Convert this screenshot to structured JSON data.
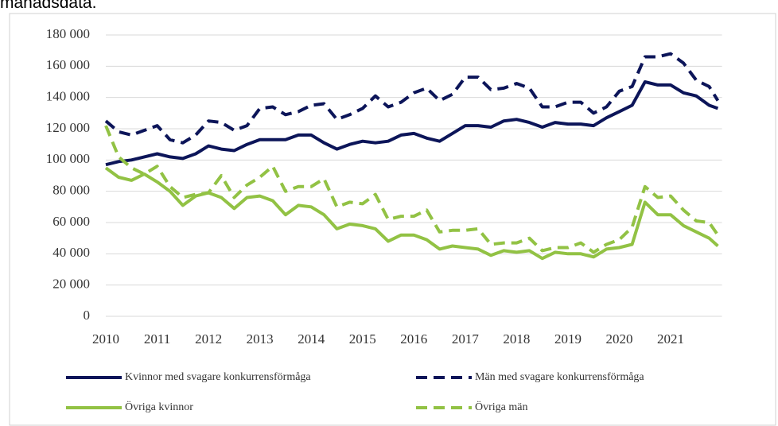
{
  "chart_data": {
    "type": "line",
    "caption": "månadsdata.",
    "x": [
      2010,
      2010.25,
      2010.5,
      2010.75,
      2011,
      2011.25,
      2011.5,
      2011.75,
      2012,
      2012.25,
      2012.5,
      2012.75,
      2013,
      2013.25,
      2013.5,
      2013.75,
      2014,
      2014.25,
      2014.5,
      2014.75,
      2015,
      2015.25,
      2015.5,
      2015.75,
      2016,
      2016.25,
      2016.5,
      2016.75,
      2017,
      2017.25,
      2017.5,
      2017.75,
      2018,
      2018.25,
      2018.5,
      2018.75,
      2019,
      2019.25,
      2019.5,
      2019.75,
      2020,
      2020.25,
      2020.5,
      2020.75,
      2021,
      2021.25,
      2021.5,
      2021.75,
      2021.92
    ],
    "xlim": [
      2010,
      2022
    ],
    "xticks": [
      2010,
      2011,
      2012,
      2013,
      2014,
      2015,
      2016,
      2017,
      2018,
      2019,
      2020,
      2021
    ],
    "ylim": [
      0,
      180000
    ],
    "yticks": [
      0,
      {
        "value": 20000,
        "label": "20 000"
      },
      {
        "value": 40000,
        "label": "40 000"
      },
      {
        "value": 60000,
        "label": "60 000"
      },
      {
        "value": 80000,
        "label": "80 000"
      },
      {
        "value": 100000,
        "label": "100 000"
      },
      {
        "value": 120000,
        "label": "120 000"
      },
      {
        "value": 140000,
        "label": "140 000"
      },
      {
        "value": 160000,
        "label": "160 000"
      },
      {
        "value": 180000,
        "label": "180 000"
      }
    ],
    "grid": true,
    "series": [
      {
        "name": "Kvinnor med svagare konkurrensförmåga",
        "color": "#0c1559",
        "dash": false,
        "values": [
          97000,
          99000,
          100000,
          102000,
          104000,
          102000,
          101000,
          104000,
          109000,
          107000,
          106000,
          110000,
          113000,
          113000,
          113000,
          116000,
          116000,
          111000,
          107000,
          110000,
          112000,
          111000,
          112000,
          116000,
          117000,
          114000,
          112000,
          117000,
          122000,
          122000,
          121000,
          125000,
          126000,
          124000,
          121000,
          124000,
          123000,
          123000,
          122000,
          127000,
          131000,
          135000,
          150000,
          148000,
          148000,
          143000,
          141000,
          135000,
          133000
        ]
      },
      {
        "name": "Män med svagare konkurrensförmåga",
        "color": "#0c1559",
        "dash": true,
        "values": [
          125000,
          118000,
          116000,
          119000,
          122000,
          113000,
          111000,
          116000,
          125000,
          124000,
          119000,
          122000,
          133000,
          134000,
          129000,
          131000,
          135000,
          136000,
          126000,
          129000,
          133000,
          141000,
          134000,
          137000,
          143000,
          146000,
          138000,
          142000,
          153000,
          153000,
          145000,
          146000,
          149000,
          146000,
          134000,
          134000,
          137000,
          137000,
          130000,
          134000,
          144000,
          147000,
          166000,
          166000,
          168000,
          162000,
          151000,
          147000,
          138000
        ]
      },
      {
        "name": "Övriga kvinnor",
        "color": "#92c244",
        "dash": false,
        "values": [
          95000,
          89000,
          87000,
          91000,
          86000,
          80000,
          71000,
          77000,
          79000,
          76000,
          69000,
          76000,
          77000,
          74000,
          65000,
          71000,
          70000,
          65000,
          56000,
          59000,
          58000,
          56000,
          48000,
          52000,
          52000,
          49000,
          43000,
          45000,
          44000,
          43000,
          39000,
          42000,
          41000,
          42000,
          37000,
          41000,
          40000,
          40000,
          38000,
          43000,
          44000,
          46000,
          73000,
          65000,
          65000,
          58000,
          54000,
          50000,
          45000
        ]
      },
      {
        "name": "Övriga män",
        "color": "#92c244",
        "dash": true,
        "values": [
          122000,
          102000,
          95000,
          91000,
          96000,
          83000,
          76000,
          78000,
          79000,
          90000,
          76000,
          84000,
          89000,
          96000,
          80000,
          83000,
          83000,
          88000,
          70000,
          73000,
          72000,
          78000,
          62000,
          64000,
          64000,
          68000,
          54000,
          55000,
          55000,
          56000,
          46000,
          47000,
          47000,
          50000,
          42000,
          44000,
          44000,
          47000,
          41000,
          46000,
          49000,
          57000,
          83000,
          76000,
          77000,
          68000,
          61000,
          60000,
          52000
        ]
      }
    ]
  }
}
